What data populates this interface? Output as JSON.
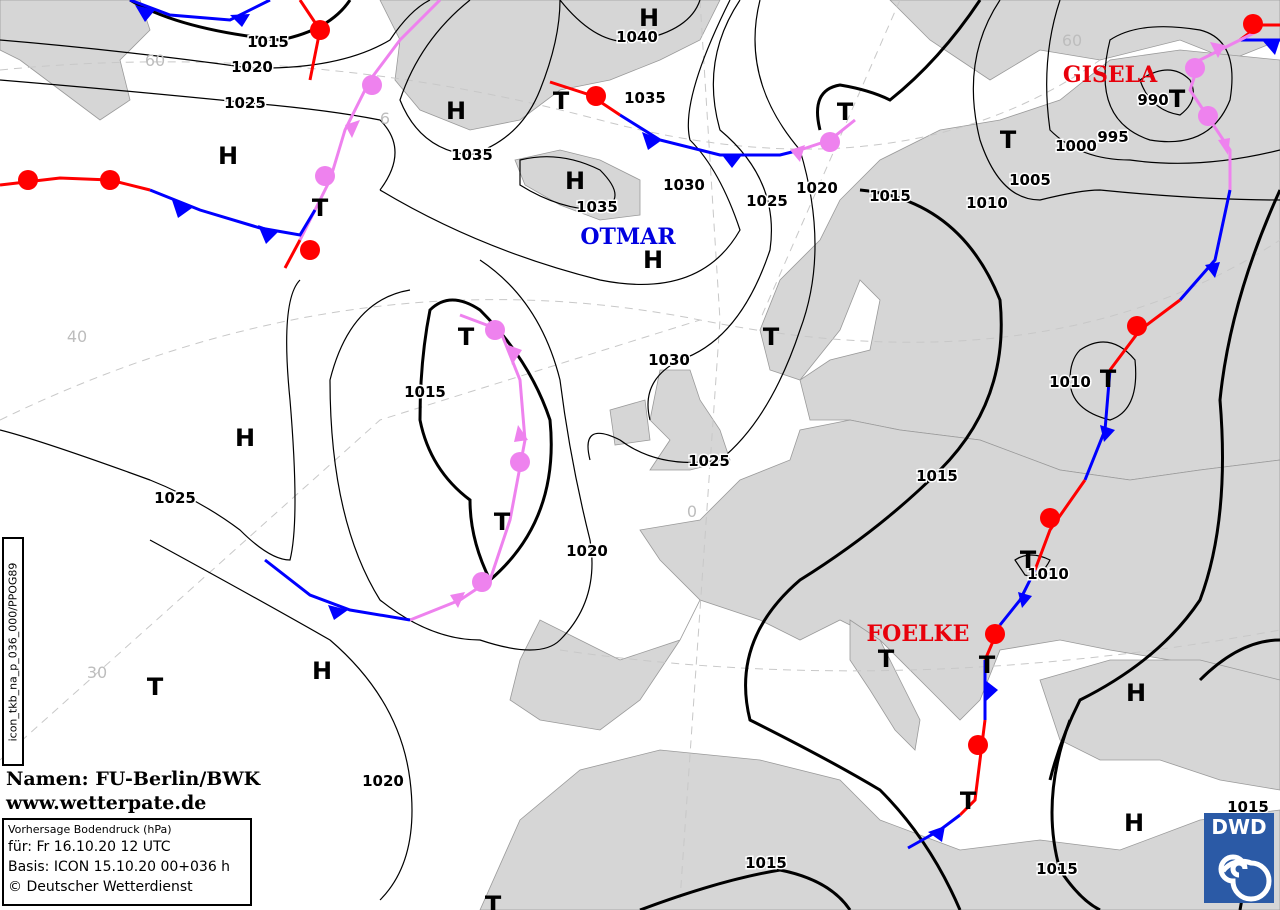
{
  "map": {
    "isobar_labels": [
      "1015",
      "1020",
      "1025",
      "1035",
      "1040",
      "1035",
      "1035",
      "1030",
      "1025",
      "1020",
      "1015",
      "1010",
      "1005",
      "1000",
      "995",
      "990",
      "1030",
      "1025",
      "1015",
      "1025",
      "1020",
      "1015",
      "1010",
      "1010",
      "1020",
      "1015",
      "1015",
      "1015"
    ],
    "high_label": "H",
    "low_label": "T",
    "grid_labels": [
      "60",
      "6",
      "40",
      "30",
      "0",
      "60"
    ],
    "names": [
      {
        "text": "GISELA",
        "color": "#e8000b"
      },
      {
        "text": "OTMAR",
        "color": "#0000e0"
      },
      {
        "text": "FOELKE",
        "color": "#e8000b"
      }
    ],
    "colors": {
      "warm_front": "#ff0000",
      "cold_front": "#0000ff",
      "occlusion": "#ee82ee",
      "land": "#d6d6d6"
    }
  },
  "sidebar_code": "icon_tkb_na_p_036_000/PPOG89",
  "credits": {
    "names": "Namen: FU-Berlin/BWK",
    "site": "www.wetterpate.de"
  },
  "info": {
    "title": "Vorhersage Bodendruck (hPa)",
    "valid": "für:  Fr 16.10.20  12 UTC",
    "base": "Basis: ICON  15.10.20 00+036 h",
    "copyright": "© Deutscher Wetterdienst"
  },
  "logo": {
    "text": "DWD",
    "icon": "dwd-spiral-logo"
  }
}
